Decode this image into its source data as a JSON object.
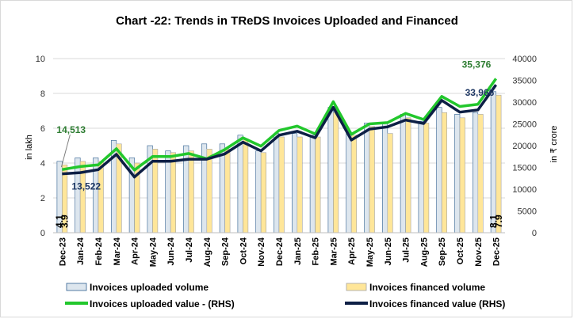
{
  "chart_data": {
    "type": "bar",
    "title": "Chart -22: Trends in TReDS Invoices Uploaded and Financed",
    "ylabel": "in lakh",
    "y2label": "in ₹ crore",
    "ylim": [
      0,
      10
    ],
    "y2lim": [
      0,
      40000
    ],
    "yticks": [
      "0",
      "2",
      "4",
      "6",
      "8",
      "10"
    ],
    "y2ticks": [
      "0",
      "5000",
      "10000",
      "15000",
      "20000",
      "25000",
      "30000",
      "35000",
      "40000"
    ],
    "grid": true,
    "legend_position": "bottom",
    "categories": [
      "Dec-23",
      "Jan-24",
      "Feb-24",
      "Mar-24",
      "Apr-24",
      "May-24",
      "Jun-24",
      "Jul-24",
      "Aug-24",
      "Sep-24",
      "Oct-24",
      "Nov-24",
      "Dec-24",
      "Jan-25",
      "Feb-25",
      "Mar-25",
      "Apr-25",
      "May-25",
      "Jun-25",
      "Jul-25",
      "Aug-25",
      "Sep-25",
      "Oct-25",
      "Nov-25",
      "Dec-25"
    ],
    "series": [
      {
        "name": "Invoices uploaded volume",
        "kind": "bar",
        "axis": "left",
        "color": "#dde6ee",
        "stroke": "#2f5f8f",
        "values": [
          4.1,
          4.3,
          4.3,
          5.3,
          4.3,
          5.0,
          4.7,
          5.0,
          5.1,
          5.1,
          5.6,
          4.7,
          5.7,
          5.7,
          5.6,
          7.2,
          5.8,
          6.3,
          6.3,
          6.8,
          6.4,
          7.2,
          6.8,
          6.9,
          8.1
        ]
      },
      {
        "name": "Invoices financed volume",
        "kind": "bar",
        "axis": "left",
        "color": "#ffe699",
        "stroke": "#a5a5a5",
        "values": [
          3.9,
          4.1,
          4.1,
          5.1,
          4.0,
          4.8,
          4.6,
          4.7,
          4.8,
          4.8,
          5.4,
          4.6,
          5.5,
          5.5,
          5.5,
          6.9,
          5.6,
          6.1,
          5.7,
          6.6,
          6.3,
          6.9,
          6.6,
          6.8,
          7.9
        ]
      },
      {
        "name": "Invoices uploaded value - (RHS)",
        "kind": "line",
        "axis": "right",
        "color": "#22c72c",
        "values": [
          14513,
          15200,
          15600,
          19300,
          14400,
          17500,
          17500,
          18200,
          17000,
          19100,
          21800,
          19900,
          23500,
          24500,
          22700,
          30100,
          22600,
          25000,
          25300,
          27400,
          26000,
          31300,
          29000,
          29500,
          35376
        ]
      },
      {
        "name": "Invoices financed value (RHS)",
        "kind": "line",
        "axis": "right",
        "color": "#0d1f45",
        "values": [
          13522,
          13800,
          14500,
          18000,
          12800,
          16400,
          16400,
          16900,
          16900,
          18100,
          20800,
          18800,
          22400,
          23300,
          21800,
          28800,
          21300,
          23800,
          24300,
          25900,
          25100,
          30400,
          27700,
          28200,
          33966
        ]
      }
    ],
    "annotations": [
      {
        "text": "14,513",
        "series": 2,
        "index": 0,
        "color": "#2e7d32"
      },
      {
        "text": "13,522",
        "series": 3,
        "index": 0,
        "color": "#1f3864"
      },
      {
        "text": "35,376",
        "series": 2,
        "index": 24,
        "color": "#2e7d32"
      },
      {
        "text": "33,966",
        "series": 3,
        "index": 24,
        "color": "#1f3864"
      },
      {
        "text": "4.1",
        "series": 0,
        "index": 0,
        "color": "#000000"
      },
      {
        "text": "3.9",
        "series": 1,
        "index": 0,
        "color": "#000000"
      },
      {
        "text": "8.1",
        "series": 0,
        "index": 24,
        "color": "#000000"
      },
      {
        "text": "7.9",
        "series": 1,
        "index": 24,
        "color": "#000000"
      }
    ]
  }
}
